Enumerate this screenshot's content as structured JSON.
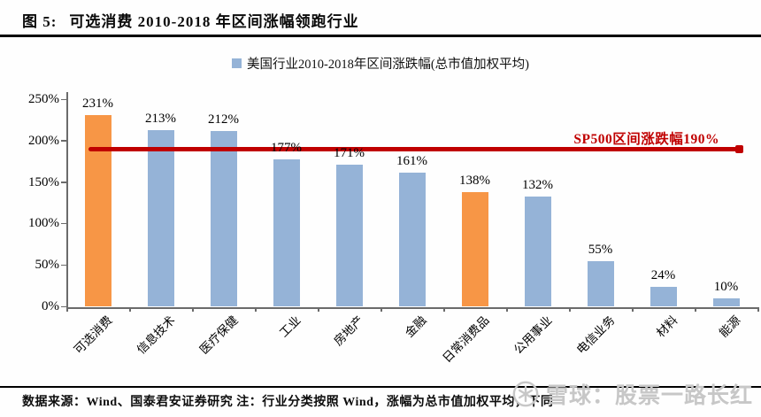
{
  "header": {
    "figure_label": "图 5:",
    "title": "可选消费 2010-2018 年区间涨幅领跑行业"
  },
  "legend": {
    "label": "美国行业2010-2018年区间涨跌幅(总市值加权平均)",
    "swatch_color": "#95B3D7"
  },
  "chart_data": {
    "type": "bar",
    "title": "美国行业2010-2018年区间涨跌幅(总市值加权平均)",
    "categories": [
      "可选消费",
      "信息技术",
      "医疗保健",
      "工业",
      "房地产",
      "金融",
      "日常消费品",
      "公用事业",
      "电信业务",
      "材料",
      "能源"
    ],
    "values": [
      231,
      213,
      212,
      177,
      171,
      161,
      138,
      132,
      55,
      24,
      10
    ],
    "value_labels": [
      "231%",
      "213%",
      "212%",
      "177%",
      "171%",
      "161%",
      "138%",
      "132%",
      "55%",
      "24%",
      "10%"
    ],
    "bar_colors": [
      "#F79646",
      "#95B3D7",
      "#95B3D7",
      "#95B3D7",
      "#95B3D7",
      "#95B3D7",
      "#F79646",
      "#95B3D7",
      "#95B3D7",
      "#95B3D7",
      "#95B3D7"
    ],
    "ylim": [
      0,
      250
    ],
    "yticks": [
      0,
      50,
      100,
      150,
      200,
      250
    ],
    "ytick_labels": [
      "0%",
      "50%",
      "100%",
      "150%",
      "200%",
      "250%"
    ],
    "grid": false,
    "legend_position": "top-center",
    "reference_line": {
      "value": 190,
      "label": "SP500区间涨跌幅190%",
      "color": "#C00000"
    }
  },
  "footer": {
    "source": "数据来源：Wind、国泰君安证券研究  注：行业分类按照 Wind，涨幅为总市值加权平均，下同"
  },
  "watermark": {
    "text": "雪球：股票一路长红"
  },
  "colors": {
    "bar_blue": "#95B3D7",
    "bar_orange": "#F79646",
    "reference_red": "#C00000",
    "axis_gray": "#6B6B6B",
    "watermark_gray": "#C7C7C7"
  }
}
